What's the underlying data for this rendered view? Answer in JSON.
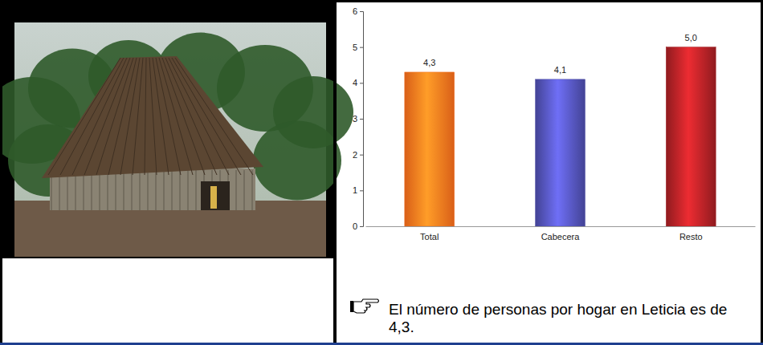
{
  "chart_data": {
    "type": "bar",
    "categories": [
      "Total",
      "Cabecera",
      "Resto"
    ],
    "values": [
      4.3,
      4.1,
      5.0
    ],
    "value_labels": [
      "4,3",
      "4,1",
      "5,0"
    ],
    "colors": [
      "#f26a1b",
      "#4b4ba6",
      "#a01e22"
    ],
    "ylim": [
      0,
      6
    ],
    "yticks": [
      0,
      1,
      2,
      3,
      4,
      5,
      6
    ],
    "data_labels": true,
    "annotations": [
      "El número de personas por hogar en Leticia es de 4,3."
    ]
  }
}
